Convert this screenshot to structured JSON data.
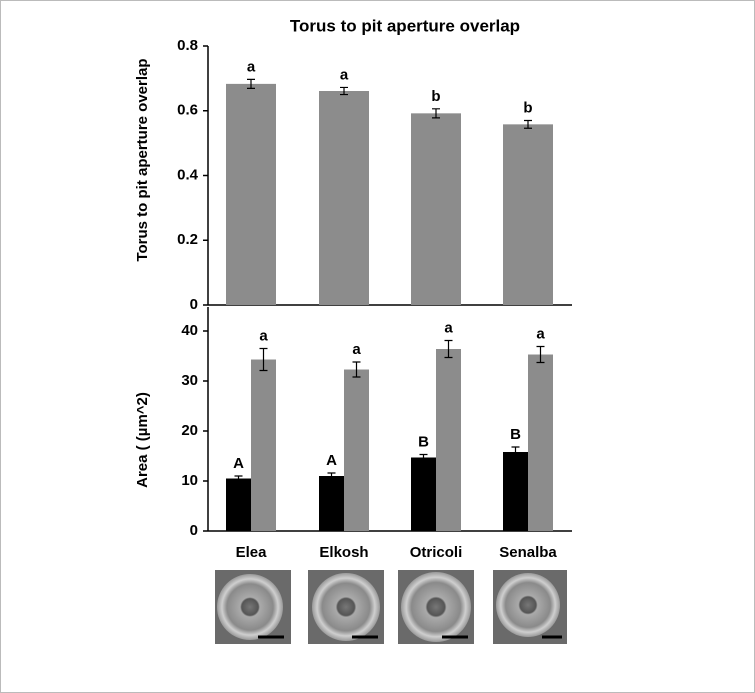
{
  "chart_data": [
    {
      "type": "bar",
      "title": "Torus to pit aperture overlap",
      "y_label": "Torus  to pit aperture overlap",
      "categories": [
        "Elea",
        "Elkosh",
        "Otricoli",
        "Senalba"
      ],
      "series": [
        {
          "color": "#8c8c8c",
          "values": [
            0.683,
            0.661,
            0.592,
            0.558
          ],
          "errors": [
            0.014,
            0.011,
            0.014,
            0.012
          ],
          "labels": [
            "a",
            "a",
            "b",
            "b"
          ]
        }
      ],
      "ylim": [
        0,
        0.8
      ],
      "yticks": [
        0,
        0.2,
        0.4,
        0.6,
        0.8
      ]
    },
    {
      "type": "bar",
      "y_label": "Area ( (µm^2)",
      "categories": [
        "Elea",
        "Elkosh",
        "Otricoli",
        "Senalba"
      ],
      "series": [
        {
          "color": "#000000",
          "values": [
            10.5,
            11.0,
            14.7,
            15.8
          ],
          "errors": [
            0.5,
            0.6,
            0.6,
            1.0
          ],
          "labels": [
            "A",
            "A",
            "B",
            "B"
          ]
        },
        {
          "color": "#8c8c8c",
          "values": [
            34.3,
            32.3,
            36.4,
            35.3
          ],
          "errors": [
            2.2,
            1.5,
            1.7,
            1.6
          ],
          "labels": [
            "a",
            "a",
            "a",
            "a"
          ]
        }
      ],
      "ylim": [
        0,
        40
      ],
      "yticks": [
        0,
        10,
        20,
        30,
        40
      ]
    }
  ]
}
